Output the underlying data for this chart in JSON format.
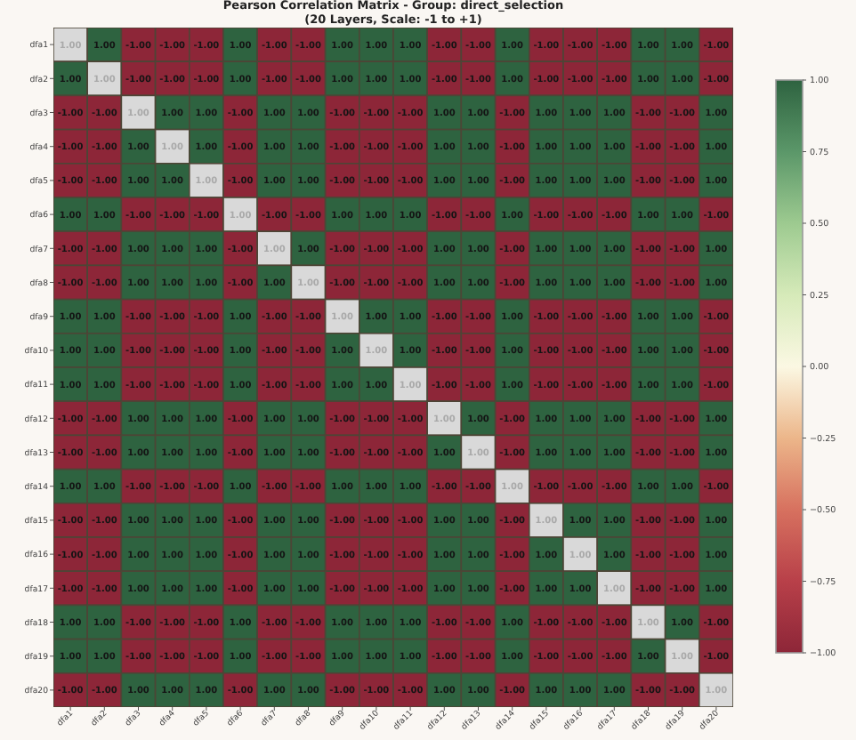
{
  "chart_data": {
    "type": "heatmap",
    "title": "Pearson Correlation Matrix - Group: direct_selection",
    "subtitle": "(20 Layers, Scale: -1 to +1)",
    "categories": [
      "dfa1",
      "dfa2",
      "dfa3",
      "dfa4",
      "dfa5",
      "dfa6",
      "dfa7",
      "dfa8",
      "dfa9",
      "dfa10",
      "dfa11",
      "dfa12",
      "dfa13",
      "dfa14",
      "dfa15",
      "dfa16",
      "dfa17",
      "dfa18",
      "dfa19",
      "dfa20"
    ],
    "y_categories": [
      "dfa1",
      "dfa2",
      "dfa3",
      "dfa4",
      "dfa5",
      "dfa6",
      "dfa7",
      "dfa8",
      "dfa9",
      "dfa10",
      "dfa11",
      "dfa12",
      "dfa13",
      "dfa14",
      "dfa15",
      "dfa16",
      "dfa17",
      "dfa18",
      "dfa19",
      "dfa20"
    ],
    "cells": [
      [
        null,
        1,
        -1,
        -1,
        -1,
        1,
        -1,
        -1,
        1,
        1,
        1,
        -1,
        -1,
        1,
        -1,
        -1,
        -1,
        1,
        1,
        -1
      ],
      [
        1,
        null,
        -1,
        -1,
        -1,
        1,
        -1,
        -1,
        1,
        1,
        1,
        -1,
        -1,
        1,
        -1,
        -1,
        -1,
        1,
        1,
        -1
      ],
      [
        -1,
        -1,
        null,
        1,
        1,
        -1,
        1,
        1,
        -1,
        -1,
        -1,
        1,
        1,
        -1,
        1,
        1,
        1,
        -1,
        -1,
        1
      ],
      [
        -1,
        -1,
        1,
        null,
        1,
        -1,
        1,
        1,
        -1,
        -1,
        -1,
        1,
        1,
        -1,
        1,
        1,
        1,
        -1,
        -1,
        1
      ],
      [
        -1,
        -1,
        1,
        1,
        null,
        -1,
        1,
        1,
        -1,
        -1,
        -1,
        1,
        1,
        -1,
        1,
        1,
        1,
        -1,
        -1,
        1
      ],
      [
        1,
        1,
        -1,
        -1,
        -1,
        null,
        -1,
        -1,
        1,
        1,
        1,
        -1,
        -1,
        1,
        -1,
        -1,
        -1,
        1,
        1,
        -1
      ],
      [
        -1,
        -1,
        1,
        1,
        1,
        -1,
        null,
        1,
        -1,
        -1,
        -1,
        1,
        1,
        -1,
        1,
        1,
        1,
        -1,
        -1,
        1
      ],
      [
        -1,
        -1,
        1,
        1,
        1,
        -1,
        1,
        null,
        -1,
        -1,
        -1,
        1,
        1,
        -1,
        1,
        1,
        1,
        -1,
        -1,
        1
      ],
      [
        1,
        1,
        -1,
        -1,
        -1,
        1,
        -1,
        -1,
        null,
        1,
        1,
        -1,
        -1,
        1,
        -1,
        -1,
        -1,
        1,
        1,
        -1
      ],
      [
        1,
        1,
        -1,
        -1,
        -1,
        1,
        -1,
        -1,
        1,
        null,
        1,
        -1,
        -1,
        1,
        -1,
        -1,
        -1,
        1,
        1,
        -1
      ],
      [
        1,
        1,
        -1,
        -1,
        -1,
        1,
        -1,
        -1,
        1,
        1,
        null,
        -1,
        -1,
        1,
        -1,
        -1,
        -1,
        1,
        1,
        -1
      ],
      [
        -1,
        -1,
        1,
        1,
        1,
        -1,
        1,
        1,
        -1,
        -1,
        -1,
        null,
        1,
        -1,
        1,
        1,
        1,
        -1,
        -1,
        1
      ],
      [
        -1,
        -1,
        1,
        1,
        1,
        -1,
        1,
        1,
        -1,
        -1,
        -1,
        1,
        null,
        -1,
        1,
        1,
        1,
        -1,
        -1,
        1
      ],
      [
        1,
        1,
        -1,
        -1,
        -1,
        1,
        -1,
        -1,
        1,
        1,
        1,
        -1,
        -1,
        null,
        -1,
        -1,
        -1,
        1,
        1,
        -1
      ],
      [
        -1,
        -1,
        1,
        1,
        1,
        -1,
        1,
        1,
        -1,
        -1,
        -1,
        1,
        1,
        -1,
        null,
        1,
        1,
        -1,
        -1,
        1
      ],
      [
        -1,
        -1,
        1,
        1,
        1,
        -1,
        1,
        1,
        -1,
        -1,
        -1,
        1,
        1,
        -1,
        1,
        null,
        1,
        -1,
        -1,
        1
      ],
      [
        -1,
        -1,
        1,
        1,
        1,
        -1,
        1,
        1,
        -1,
        -1,
        -1,
        1,
        1,
        -1,
        1,
        1,
        null,
        -1,
        -1,
        1
      ],
      [
        1,
        1,
        -1,
        -1,
        -1,
        1,
        -1,
        -1,
        1,
        1,
        1,
        -1,
        -1,
        1,
        -1,
        -1,
        -1,
        null,
        1,
        -1
      ],
      [
        1,
        1,
        -1,
        -1,
        -1,
        1,
        -1,
        -1,
        1,
        1,
        1,
        -1,
        -1,
        1,
        -1,
        -1,
        -1,
        1,
        null,
        -1
      ],
      [
        -1,
        -1,
        1,
        1,
        1,
        -1,
        1,
        1,
        -1,
        -1,
        -1,
        1,
        1,
        -1,
        1,
        1,
        1,
        -1,
        -1,
        null
      ]
    ],
    "cell_labels": [
      [
        "1.00",
        "1.00",
        "-1.00",
        "-1.00",
        "-1.00",
        "1.00",
        "-1.00",
        "-1.00",
        "1.00",
        "1.00",
        "1.00",
        "-1.00",
        "-1.00",
        "1.00",
        "-1.00",
        "-1.00",
        "-1.00",
        "1.00",
        "1.00",
        "-1.00"
      ],
      [
        "1.00",
        "1.00",
        "-1.00",
        "-1.00",
        "-1.00",
        "1.00",
        "-1.00",
        "-1.00",
        "1.00",
        "1.00",
        "1.00",
        "-1.00",
        "-1.00",
        "1.00",
        "-1.00",
        "-1.00",
        "-1.00",
        "1.00",
        "1.00",
        "-1.00"
      ],
      [
        "-1.00",
        "-1.00",
        "1.00",
        "1.00",
        "1.00",
        "-1.00",
        "1.00",
        "1.00",
        "-1.00",
        "-1.00",
        "-1.00",
        "1.00",
        "1.00",
        "-1.00",
        "1.00",
        "1.00",
        "1.00",
        "-1.00",
        "-1.00",
        "1.00"
      ],
      [
        "-1.00",
        "-1.00",
        "1.00",
        "1.00",
        "1.00",
        "-1.00",
        "1.00",
        "1.00",
        "-1.00",
        "-1.00",
        "-1.00",
        "1.00",
        "1.00",
        "-1.00",
        "1.00",
        "1.00",
        "1.00",
        "-1.00",
        "-1.00",
        "1.00"
      ],
      [
        "-1.00",
        "-1.00",
        "1.00",
        "1.00",
        "1.00",
        "-1.00",
        "1.00",
        "1.00",
        "-1.00",
        "-1.00",
        "-1.00",
        "1.00",
        "1.00",
        "-1.00",
        "1.00",
        "1.00",
        "1.00",
        "-1.00",
        "-1.00",
        "1.00"
      ],
      [
        "1.00",
        "1.00",
        "-1.00",
        "-1.00",
        "-1.00",
        "1.00",
        "-1.00",
        "-1.00",
        "1.00",
        "1.00",
        "1.00",
        "-1.00",
        "-1.00",
        "1.00",
        "-1.00",
        "-1.00",
        "-1.00",
        "1.00",
        "1.00",
        "-1.00"
      ],
      [
        "-1.00",
        "-1.00",
        "1.00",
        "1.00",
        "1.00",
        "-1.00",
        "1.00",
        "1.00",
        "-1.00",
        "-1.00",
        "-1.00",
        "1.00",
        "1.00",
        "-1.00",
        "1.00",
        "1.00",
        "1.00",
        "-1.00",
        "-1.00",
        "1.00"
      ],
      [
        "-1.00",
        "-1.00",
        "1.00",
        "1.00",
        "1.00",
        "-1.00",
        "1.00",
        "1.00",
        "-1.00",
        "-1.00",
        "-1.00",
        "1.00",
        "1.00",
        "-1.00",
        "1.00",
        "1.00",
        "1.00",
        "-1.00",
        "-1.00",
        "1.00"
      ],
      [
        "1.00",
        "1.00",
        "-1.00",
        "-1.00",
        "-1.00",
        "1.00",
        "-1.00",
        "-1.00",
        "1.00",
        "1.00",
        "1.00",
        "-1.00",
        "-1.00",
        "1.00",
        "-1.00",
        "-1.00",
        "-1.00",
        "1.00",
        "1.00",
        "-1.00"
      ],
      [
        "1.00",
        "1.00",
        "-1.00",
        "-1.00",
        "-1.00",
        "1.00",
        "-1.00",
        "-1.00",
        "1.00",
        "1.00",
        "1.00",
        "-1.00",
        "-1.00",
        "1.00",
        "-1.00",
        "-1.00",
        "-1.00",
        "1.00",
        "1.00",
        "-1.00"
      ],
      [
        "1.00",
        "1.00",
        "-1.00",
        "-1.00",
        "-1.00",
        "1.00",
        "-1.00",
        "-1.00",
        "1.00",
        "1.00",
        "1.00",
        "-1.00",
        "-1.00",
        "1.00",
        "-1.00",
        "-1.00",
        "-1.00",
        "1.00",
        "1.00",
        "-1.00"
      ],
      [
        "-1.00",
        "-1.00",
        "1.00",
        "1.00",
        "1.00",
        "-1.00",
        "1.00",
        "1.00",
        "-1.00",
        "-1.00",
        "-1.00",
        "1.00",
        "1.00",
        "-1.00",
        "1.00",
        "1.00",
        "1.00",
        "-1.00",
        "-1.00",
        "1.00"
      ],
      [
        "-1.00",
        "-1.00",
        "1.00",
        "1.00",
        "1.00",
        "-1.00",
        "1.00",
        "1.00",
        "-1.00",
        "-1.00",
        "-1.00",
        "1.00",
        "1.00",
        "-1.00",
        "1.00",
        "1.00",
        "1.00",
        "-1.00",
        "-1.00",
        "1.00"
      ],
      [
        "1.00",
        "1.00",
        "-1.00",
        "-1.00",
        "-1.00",
        "1.00",
        "-1.00",
        "-1.00",
        "1.00",
        "1.00",
        "1.00",
        "-1.00",
        "-1.00",
        "1.00",
        "-1.00",
        "-1.00",
        "-1.00",
        "1.00",
        "1.00",
        "-1.00"
      ],
      [
        "-1.00",
        "-1.00",
        "1.00",
        "1.00",
        "1.00",
        "-1.00",
        "1.00",
        "1.00",
        "-1.00",
        "-1.00",
        "-1.00",
        "1.00",
        "1.00",
        "-1.00",
        "1.00",
        "1.00",
        "1.00",
        "-1.00",
        "-1.00",
        "1.00"
      ],
      [
        "-1.00",
        "-1.00",
        "1.00",
        "1.00",
        "1.00",
        "-1.00",
        "1.00",
        "1.00",
        "-1.00",
        "-1.00",
        "-1.00",
        "1.00",
        "1.00",
        "-1.00",
        "1.00",
        "1.00",
        "1.00",
        "-1.00",
        "-1.00",
        "1.00"
      ],
      [
        "-1.00",
        "-1.00",
        "1.00",
        "1.00",
        "1.00",
        "-1.00",
        "1.00",
        "1.00",
        "-1.00",
        "-1.00",
        "-1.00",
        "1.00",
        "1.00",
        "-1.00",
        "1.00",
        "1.00",
        "1.00",
        "-1.00",
        "-1.00",
        "1.00"
      ],
      [
        "1.00",
        "1.00",
        "-1.00",
        "-1.00",
        "-1.00",
        "1.00",
        "-1.00",
        "-1.00",
        "1.00",
        "1.00",
        "1.00",
        "-1.00",
        "-1.00",
        "1.00",
        "-1.00",
        "-1.00",
        "-1.00",
        "1.00",
        "1.00",
        "-1.00"
      ],
      [
        "1.00",
        "1.00",
        "-1.00",
        "-1.00",
        "-1.00",
        "1.00",
        "-1.00",
        "-1.00",
        "1.00",
        "1.00",
        "1.00",
        "-1.00",
        "-1.00",
        "1.00",
        "-1.00",
        "-1.00",
        "-1.00",
        "1.00",
        "1.00",
        "-1.00"
      ],
      [
        "-1.00",
        "-1.00",
        "1.00",
        "1.00",
        "1.00",
        "-1.00",
        "1.00",
        "1.00",
        "-1.00",
        "-1.00",
        "-1.00",
        "1.00",
        "1.00",
        "-1.00",
        "1.00",
        "1.00",
        "1.00",
        "-1.00",
        "-1.00",
        "1.00"
      ]
    ],
    "clim": [
      -1,
      1
    ],
    "cticks": [
      {
        "value": 1,
        "label": "1.00"
      },
      {
        "value": 0.75,
        "label": "0.75"
      },
      {
        "value": 0.5,
        "label": "0.50"
      },
      {
        "value": 0.25,
        "label": "0.25"
      },
      {
        "value": 0,
        "label": "0.00"
      },
      {
        "value": -0.25,
        "label": "−0.25"
      },
      {
        "value": -0.5,
        "label": "−0.50"
      },
      {
        "value": -0.75,
        "label": "−0.75"
      },
      {
        "value": -1,
        "label": "−1.00"
      }
    ]
  }
}
